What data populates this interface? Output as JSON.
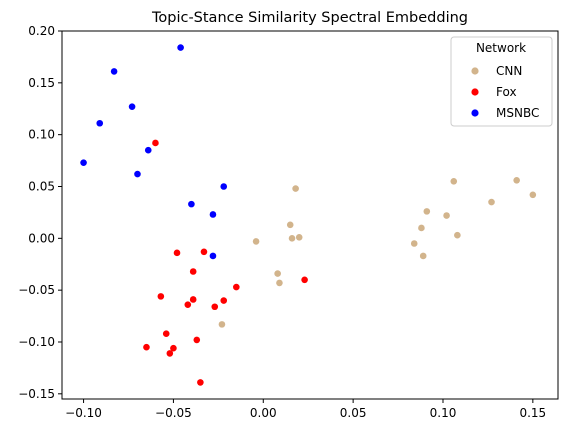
{
  "chart_data": {
    "type": "scatter",
    "title": "Topic-Stance Similarity Spectral Embedding",
    "xlabel": "",
    "ylabel": "",
    "xlim": [
      -0.112,
      0.164
    ],
    "ylim": [
      -0.155,
      0.2
    ],
    "x_ticks": [
      -0.1,
      -0.05,
      0.0,
      0.05,
      0.1,
      0.15
    ],
    "x_tick_labels": [
      "−0.10",
      "−0.05",
      "0.00",
      "0.05",
      "0.10",
      "0.15"
    ],
    "y_ticks": [
      -0.15,
      -0.1,
      -0.05,
      0.0,
      0.05,
      0.1,
      0.15,
      0.2
    ],
    "y_tick_labels": [
      "−0.15",
      "−0.10",
      "−0.05",
      "0.00",
      "0.05",
      "0.10",
      "0.15",
      "0.20"
    ],
    "grid": false,
    "legend": {
      "title": "Network",
      "position": "top-right"
    },
    "series": [
      {
        "name": "CNN",
        "color": "#d2b48c",
        "points": [
          {
            "x": -0.004,
            "y": -0.003
          },
          {
            "x": 0.008,
            "y": -0.034
          },
          {
            "x": 0.009,
            "y": -0.043
          },
          {
            "x": 0.015,
            "y": 0.013
          },
          {
            "x": 0.016,
            "y": 0.0
          },
          {
            "x": 0.018,
            "y": 0.048
          },
          {
            "x": 0.02,
            "y": 0.001
          },
          {
            "x": -0.023,
            "y": -0.083
          },
          {
            "x": 0.084,
            "y": -0.005
          },
          {
            "x": 0.088,
            "y": 0.01
          },
          {
            "x": 0.089,
            "y": -0.017
          },
          {
            "x": 0.091,
            "y": 0.026
          },
          {
            "x": 0.102,
            "y": 0.022
          },
          {
            "x": 0.106,
            "y": 0.055
          },
          {
            "x": 0.108,
            "y": 0.003
          },
          {
            "x": 0.127,
            "y": 0.035
          },
          {
            "x": 0.141,
            "y": 0.056
          },
          {
            "x": 0.15,
            "y": 0.042
          }
        ]
      },
      {
        "name": "Fox",
        "color": "#ff0000",
        "points": [
          {
            "x": -0.06,
            "y": 0.092
          },
          {
            "x": -0.048,
            "y": -0.014
          },
          {
            "x": -0.033,
            "y": -0.013
          },
          {
            "x": -0.039,
            "y": -0.032
          },
          {
            "x": -0.057,
            "y": -0.056
          },
          {
            "x": -0.042,
            "y": -0.064
          },
          {
            "x": -0.039,
            "y": -0.059
          },
          {
            "x": -0.027,
            "y": -0.066
          },
          {
            "x": -0.022,
            "y": -0.06
          },
          {
            "x": -0.015,
            "y": -0.047
          },
          {
            "x": 0.023,
            "y": -0.04
          },
          {
            "x": -0.054,
            "y": -0.092
          },
          {
            "x": -0.037,
            "y": -0.098
          },
          {
            "x": -0.05,
            "y": -0.106
          },
          {
            "x": -0.065,
            "y": -0.105
          },
          {
            "x": -0.052,
            "y": -0.111
          },
          {
            "x": -0.035,
            "y": -0.139
          }
        ]
      },
      {
        "name": "MSNBC",
        "color": "#0000ff",
        "points": [
          {
            "x": -0.046,
            "y": 0.184
          },
          {
            "x": -0.083,
            "y": 0.161
          },
          {
            "x": -0.073,
            "y": 0.127
          },
          {
            "x": -0.091,
            "y": 0.111
          },
          {
            "x": -0.064,
            "y": 0.085
          },
          {
            "x": -0.1,
            "y": 0.073
          },
          {
            "x": -0.07,
            "y": 0.062
          },
          {
            "x": -0.022,
            "y": 0.05
          },
          {
            "x": -0.04,
            "y": 0.033
          },
          {
            "x": -0.028,
            "y": 0.023
          },
          {
            "x": -0.028,
            "y": -0.017
          }
        ]
      }
    ]
  }
}
